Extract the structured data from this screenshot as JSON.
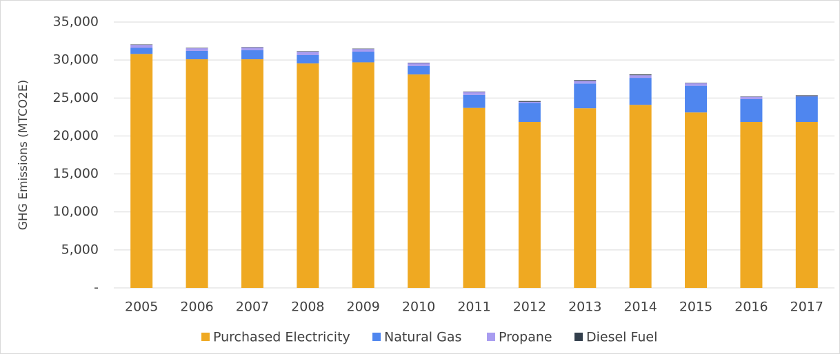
{
  "chart_data": {
    "type": "stacked_bar",
    "y_label": "GHG Emissions (MTCO2E)",
    "categories": [
      "2005",
      "2006",
      "2007",
      "2008",
      "2009",
      "2010",
      "2011",
      "2012",
      "2013",
      "2014",
      "2015",
      "2016",
      "2017"
    ],
    "series": [
      {
        "name": "Purchased Electricity",
        "color": "#efa922",
        "values": [
          30800,
          30100,
          30100,
          29550,
          29700,
          28100,
          23700,
          21850,
          23650,
          24100,
          23100,
          21850,
          21850
        ]
      },
      {
        "name": "Natural Gas",
        "color": "#4f86ef",
        "values": [
          800,
          1100,
          1200,
          1100,
          1400,
          1100,
          1700,
          2500,
          3250,
          3550,
          3500,
          3000,
          3350
        ]
      },
      {
        "name": "Propane",
        "color": "#a89cf0",
        "values": [
          400,
          350,
          350,
          450,
          350,
          400,
          400,
          150,
          350,
          350,
          350,
          300,
          50
        ]
      },
      {
        "name": "Diesel Fuel",
        "color": "#333f4c",
        "values": [
          50,
          50,
          50,
          50,
          50,
          50,
          50,
          100,
          100,
          100,
          50,
          50,
          100
        ]
      }
    ],
    "ylim": [
      0,
      35000
    ],
    "yticks": [
      {
        "value": 0,
        "label": "-"
      },
      {
        "value": 5000,
        "label": "5,000"
      },
      {
        "value": 10000,
        "label": "10,000"
      },
      {
        "value": 15000,
        "label": "15,000"
      },
      {
        "value": 20000,
        "label": "20,000"
      },
      {
        "value": 25000,
        "label": "25,000"
      },
      {
        "value": 30000,
        "label": "30,000"
      },
      {
        "value": 35000,
        "label": "35,000"
      }
    ],
    "grid": true,
    "legend": "bottom"
  }
}
